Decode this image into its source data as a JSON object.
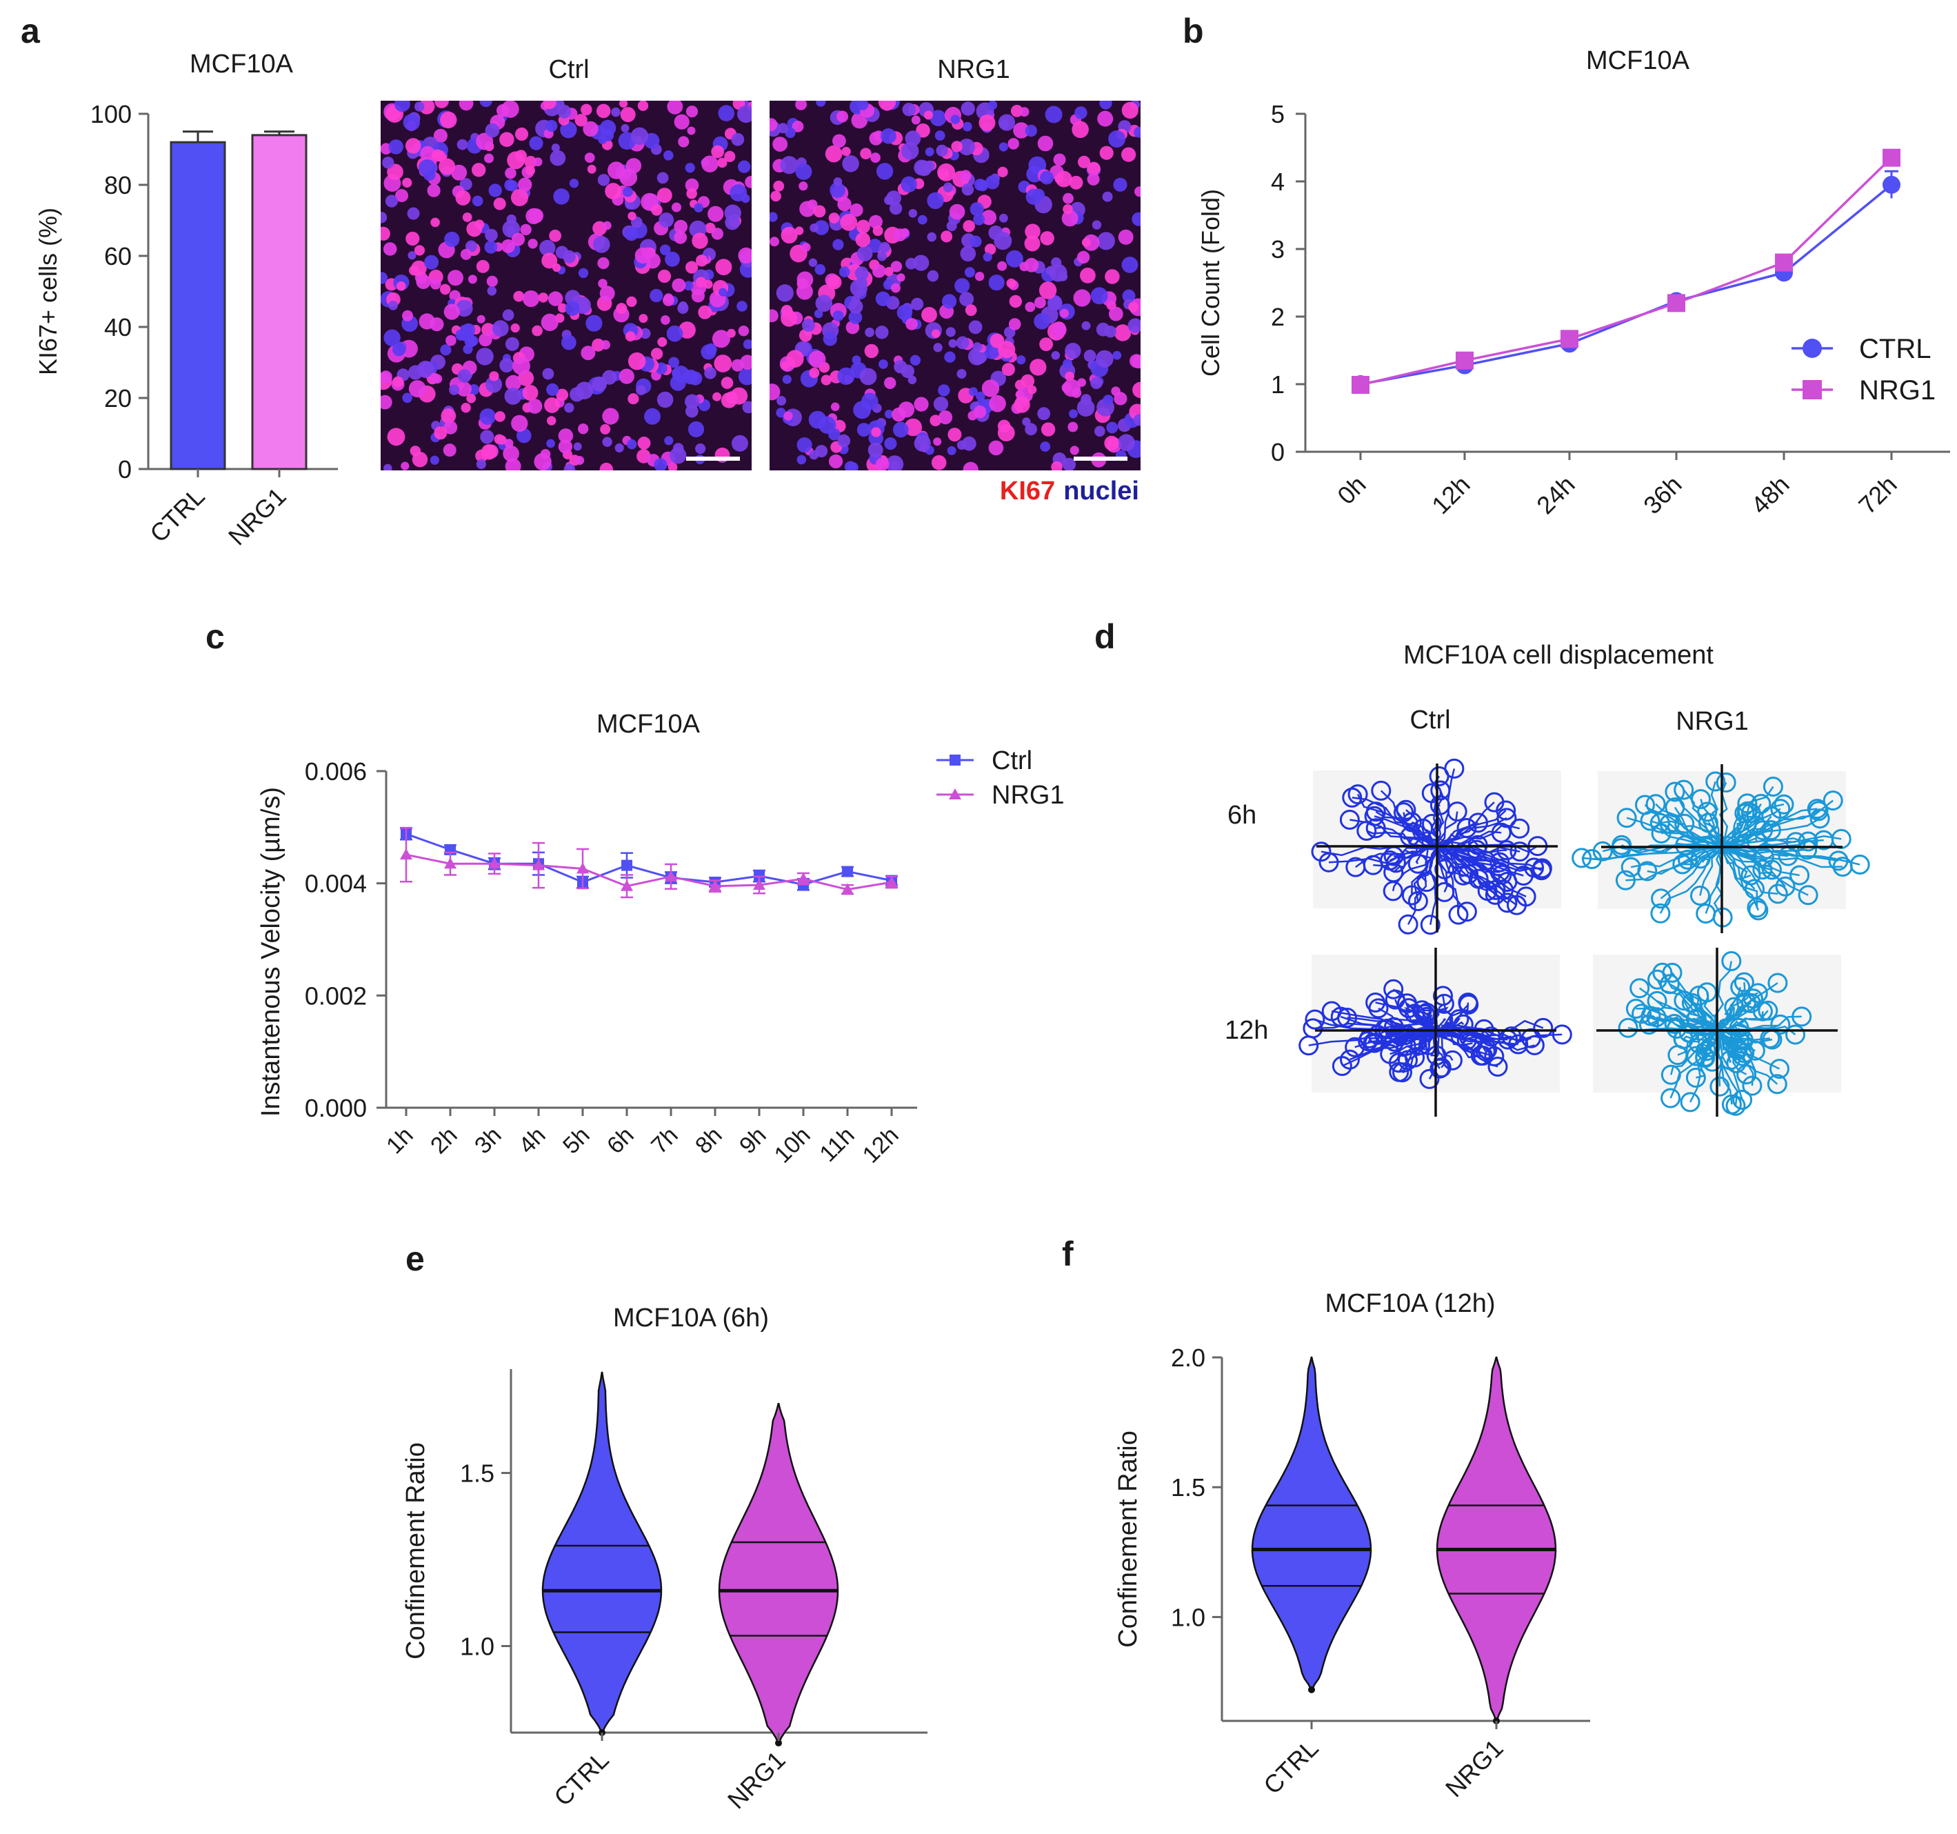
{
  "colors": {
    "ctrl": "#5050f5",
    "nrg1_bar": "#f07cf0",
    "nrg1": "#cc4fd6",
    "track_ctrl": "#2233e0",
    "track_nrg1": "#1a98d8",
    "kl67": "#e8201f",
    "nuclei": "#20209a"
  },
  "panels": {
    "a": {
      "letter": "a",
      "micro_titles": [
        "Ctrl",
        "NRG1"
      ],
      "stain_kl67": "KI67",
      "stain_nuclei": "nuclei"
    },
    "b": {
      "letter": "b"
    },
    "c": {
      "letter": "c"
    },
    "d": {
      "letter": "d",
      "title": "MCF10A cell displacement",
      "col_labels": [
        "Ctrl",
        "NRG1"
      ],
      "row_labels": [
        "6h",
        "12h"
      ]
    },
    "e": {
      "letter": "e"
    },
    "f": {
      "letter": "f"
    }
  },
  "chart_data": [
    {
      "id": "a",
      "type": "bar",
      "title": "MCF10A",
      "ylabel": "KI67+ cells (%)",
      "categories": [
        "CTRL",
        "NRG1"
      ],
      "values": [
        92,
        94
      ],
      "errors": [
        3,
        1
      ],
      "ylim": [
        0,
        100
      ],
      "yticks": [
        "0",
        "20",
        "40",
        "60",
        "80",
        "100"
      ]
    },
    {
      "id": "b",
      "type": "line",
      "title": "MCF10A",
      "ylabel": "Cell Count (Fold)",
      "x": [
        "0h",
        "12h",
        "24h",
        "36h",
        "48h",
        "72h"
      ],
      "ylim": [
        0,
        5
      ],
      "yticks": [
        "0",
        "1",
        "2",
        "3",
        "4",
        "5"
      ],
      "legend": "right",
      "series": [
        {
          "name": "CTRL",
          "marker": "circle",
          "values": [
            1.0,
            1.28,
            1.6,
            2.23,
            2.65,
            3.95
          ],
          "errors": [
            0.05,
            0.04,
            0.05,
            0.05,
            0.08,
            0.2
          ]
        },
        {
          "name": "NRG1",
          "marker": "square",
          "values": [
            0.99,
            1.35,
            1.67,
            2.2,
            2.8,
            4.35
          ],
          "errors": [
            0.04,
            0.04,
            0.04,
            0.04,
            0.05,
            0.08
          ]
        }
      ]
    },
    {
      "id": "c",
      "type": "line",
      "title": "MCF10A",
      "ylabel": "Instantenous Velocity (µm/s)",
      "x": [
        "1h",
        "2h",
        "3h",
        "4h",
        "5h",
        "6h",
        "7h",
        "8h",
        "9h",
        "10h",
        "11h",
        "12h"
      ],
      "ylim": [
        0,
        0.006
      ],
      "yticks": [
        "0.000",
        "0.002",
        "0.004",
        "0.006"
      ],
      "legend": "top-right",
      "series": [
        {
          "name": "Ctrl",
          "marker": "square",
          "values": [
            0.00488,
            0.0046,
            0.00435,
            0.00435,
            0.00402,
            0.00432,
            0.0041,
            0.00402,
            0.00413,
            0.00398,
            0.00421,
            0.00405
          ],
          "errors": [
            0.0001,
            8e-05,
            0.0001,
            0.0002,
            0.0001,
            0.00022,
            0.0001,
            8e-05,
            0.0001,
            0.0001,
            8e-05,
            8e-05
          ]
        },
        {
          "name": "NRG1",
          "marker": "triangle",
          "values": [
            0.00451,
            0.00435,
            0.00435,
            0.00432,
            0.00426,
            0.00395,
            0.00412,
            0.00395,
            0.00397,
            0.00408,
            0.00389,
            0.00402
          ],
          "errors": [
            0.00048,
            0.0002,
            0.00018,
            0.0004,
            0.00035,
            0.0002,
            0.00022,
            0.0001,
            0.00015,
            0.0001,
            8e-05,
            0.0001
          ]
        }
      ]
    },
    {
      "id": "e",
      "type": "violin",
      "title": "MCF10A (6h)",
      "ylabel": "Confinement Ratio",
      "categories": [
        "CTRL",
        "NRG1"
      ],
      "ylim": [
        0.75,
        1.8
      ],
      "yticks": [
        1.0,
        1.5
      ],
      "ytick_labels": [
        "1.0",
        "1.5"
      ],
      "violins": [
        {
          "name": "CTRL",
          "min": 0.75,
          "max": 1.79,
          "q1": 1.04,
          "median": 1.16,
          "q3": 1.29
        },
        {
          "name": "NRG1",
          "min": 0.72,
          "max": 1.7,
          "q1": 1.03,
          "median": 1.16,
          "q3": 1.3
        }
      ]
    },
    {
      "id": "f",
      "type": "violin",
      "title": "MCF10A (12h)",
      "ylabel": "Confinement Ratio",
      "categories": [
        "CTRL",
        "NRG1"
      ],
      "ylim": [
        0.6,
        2.0
      ],
      "yticks": [
        1.0,
        1.5,
        2.0
      ],
      "ytick_labels": [
        "1.0",
        "1.5",
        "2.0"
      ],
      "violins": [
        {
          "name": "CTRL",
          "min": 0.72,
          "max": 2.0,
          "q1": 1.12,
          "median": 1.26,
          "q3": 1.43
        },
        {
          "name": "NRG1",
          "min": 0.6,
          "max": 2.0,
          "q1": 1.09,
          "median": 1.26,
          "q3": 1.43
        }
      ]
    }
  ]
}
